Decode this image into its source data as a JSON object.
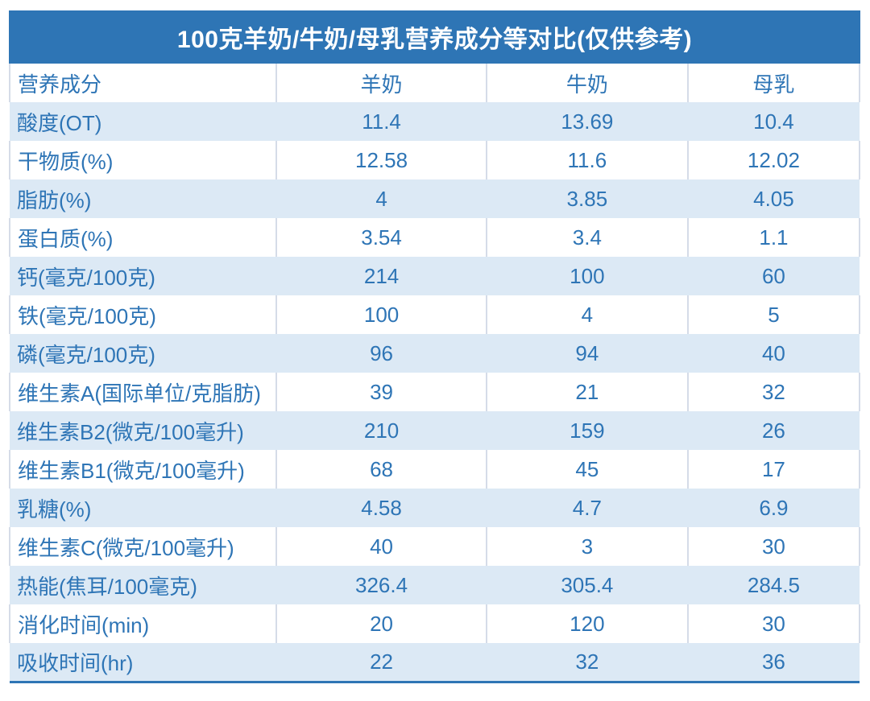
{
  "chart_data": {
    "type": "table",
    "title": "100克羊奶/牛奶/母乳营养成分等对比(仅供参考)",
    "columns": [
      "营养成分",
      "羊奶",
      "牛奶",
      "母乳"
    ],
    "rows": [
      [
        "酸度(OT)",
        "11.4",
        "13.69",
        "10.4"
      ],
      [
        "干物质(%)",
        "12.58",
        "11.6",
        "12.02"
      ],
      [
        "脂肪(%)",
        "4",
        "3.85",
        "4.05"
      ],
      [
        "蛋白质(%)",
        "3.54",
        "3.4",
        "1.1"
      ],
      [
        "钙(毫克/100克)",
        "214",
        "100",
        "60"
      ],
      [
        "铁(毫克/100克)",
        "100",
        "4",
        "5"
      ],
      [
        "磷(毫克/100克)",
        "96",
        "94",
        "40"
      ],
      [
        "维生素A(国际单位/克脂肪)",
        "39",
        "21",
        "32"
      ],
      [
        "维生素B2(微克/100毫升)",
        "210",
        "159",
        "26"
      ],
      [
        "维生素B1(微克/100毫升)",
        "68",
        "45",
        "17"
      ],
      [
        "乳糖(%)",
        "4.58",
        "4.7",
        "6.9"
      ],
      [
        "维生素C(微克/100毫升)",
        "40",
        "3",
        "30"
      ],
      [
        "热能(焦耳/100毫克)",
        "326.4",
        "305.4",
        "284.5"
      ],
      [
        "消化时间(min)",
        "20",
        "120",
        "30"
      ],
      [
        "吸收时间(hr)",
        "22",
        "32",
        "36"
      ]
    ],
    "layout_hints": {
      "banded_rows": true,
      "first_data_row_banded": true,
      "column_alignment": [
        "left",
        "center",
        "center",
        "center"
      ]
    }
  },
  "colors": {
    "accent": "#2E75B5",
    "band": "#DCE9F5",
    "text": "#2E75B6",
    "grid": "#D5DCE8",
    "title_text": "#FFFFFF",
    "page_background": "#FFFFFF"
  }
}
